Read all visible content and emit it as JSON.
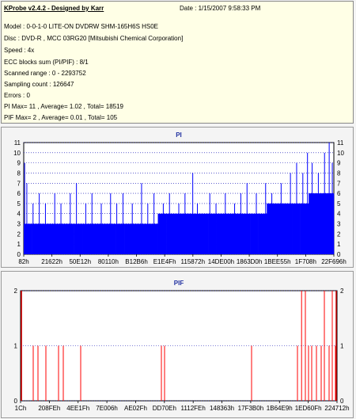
{
  "info": {
    "title": "KProbe v2.4.2 - Designed by Karr",
    "date": "Date : 1/15/2007 9:58:33 PM",
    "lines": [
      "Model : 0-0-1-0 LITE-ON DVDRW SHM-165H6S HS0E",
      "Disc : DVD-R , MCC 03RG20   [Mitsubishi Chemical Corporation]",
      "Speed : 4x",
      "ECC blocks sum (PI/PIF) : 8/1",
      "Scanned range : 0 - 2293752",
      "Sampling count : 126647",
      "Errors : 0",
      "PI Max= 11 , Average= 1.02 , Total= 18519",
      "PIF Max= 2 , Average= 0.01 , Total= 105"
    ]
  },
  "colors": {
    "pi": "#0000ff",
    "pif": "#ff0000",
    "grid": "#0000b0",
    "axis_red": "#cc0000"
  },
  "chart_data": [
    {
      "type": "bar",
      "title": "PI",
      "ylim": [
        0,
        11
      ],
      "yticks": [
        0,
        1,
        2,
        3,
        4,
        5,
        6,
        7,
        8,
        9,
        10,
        11
      ],
      "xtick_labels": [
        "82h",
        "21622h",
        "50E12h",
        "80110h",
        "B12B6h",
        "E1E4Fh",
        "115872h",
        "14DE00h",
        "1863D0h",
        "1BEE55h",
        "1F708h",
        "22F696h"
      ],
      "baseline": [
        3,
        3,
        3,
        3,
        3,
        3,
        3,
        3,
        3,
        3,
        3,
        3,
        3,
        3,
        3,
        3,
        4,
        4,
        4,
        4,
        4,
        4,
        4,
        4,
        4,
        4,
        4,
        4,
        4,
        5,
        5,
        5,
        5,
        5,
        6,
        6,
        6
      ],
      "spikes": [
        {
          "p": 0.003,
          "v": 9
        },
        {
          "p": 0.01,
          "v": 7
        },
        {
          "p": 0.03,
          "v": 5
        },
        {
          "p": 0.05,
          "v": 6
        },
        {
          "p": 0.07,
          "v": 5
        },
        {
          "p": 0.1,
          "v": 6
        },
        {
          "p": 0.12,
          "v": 5
        },
        {
          "p": 0.15,
          "v": 6
        },
        {
          "p": 0.17,
          "v": 7
        },
        {
          "p": 0.2,
          "v": 5
        },
        {
          "p": 0.22,
          "v": 6
        },
        {
          "p": 0.25,
          "v": 5
        },
        {
          "p": 0.28,
          "v": 6
        },
        {
          "p": 0.3,
          "v": 5
        },
        {
          "p": 0.32,
          "v": 6
        },
        {
          "p": 0.35,
          "v": 5
        },
        {
          "p": 0.38,
          "v": 7
        },
        {
          "p": 0.4,
          "v": 5
        },
        {
          "p": 0.42,
          "v": 6
        },
        {
          "p": 0.45,
          "v": 5
        },
        {
          "p": 0.47,
          "v": 6
        },
        {
          "p": 0.5,
          "v": 5
        },
        {
          "p": 0.52,
          "v": 6
        },
        {
          "p": 0.545,
          "v": 8
        },
        {
          "p": 0.56,
          "v": 5
        },
        {
          "p": 0.6,
          "v": 6
        },
        {
          "p": 0.62,
          "v": 5
        },
        {
          "p": 0.65,
          "v": 6
        },
        {
          "p": 0.68,
          "v": 5
        },
        {
          "p": 0.7,
          "v": 6
        },
        {
          "p": 0.72,
          "v": 7
        },
        {
          "p": 0.75,
          "v": 6
        },
        {
          "p": 0.78,
          "v": 7
        },
        {
          "p": 0.8,
          "v": 6
        },
        {
          "p": 0.83,
          "v": 7
        },
        {
          "p": 0.86,
          "v": 8
        },
        {
          "p": 0.88,
          "v": 9
        },
        {
          "p": 0.9,
          "v": 8
        },
        {
          "p": 0.915,
          "v": 10
        },
        {
          "p": 0.93,
          "v": 9
        },
        {
          "p": 0.95,
          "v": 8
        },
        {
          "p": 0.97,
          "v": 10
        },
        {
          "p": 0.985,
          "v": 11
        },
        {
          "p": 0.995,
          "v": 9
        }
      ]
    },
    {
      "type": "bar",
      "title": "PIF",
      "ylim": [
        0,
        2
      ],
      "yticks": [
        0,
        1,
        2
      ],
      "xtick_labels": [
        "1Ch",
        "208FEh",
        "4EE1Fh",
        "7E006h",
        "AE02Fh",
        "DD70Eh",
        "1112FEh",
        "148363h",
        "17F3B0h",
        "1B64E9h",
        "1ED60Fh",
        "224712h"
      ],
      "spikes": [
        {
          "p": 0.003,
          "v": 2
        },
        {
          "p": 0.04,
          "v": 1
        },
        {
          "p": 0.055,
          "v": 1
        },
        {
          "p": 0.08,
          "v": 1
        },
        {
          "p": 0.12,
          "v": 1
        },
        {
          "p": 0.135,
          "v": 1
        },
        {
          "p": 0.19,
          "v": 1
        },
        {
          "p": 0.445,
          "v": 1
        },
        {
          "p": 0.455,
          "v": 1
        },
        {
          "p": 0.73,
          "v": 1
        },
        {
          "p": 0.875,
          "v": 1
        },
        {
          "p": 0.888,
          "v": 2
        },
        {
          "p": 0.9,
          "v": 2
        },
        {
          "p": 0.91,
          "v": 1
        },
        {
          "p": 0.92,
          "v": 1
        },
        {
          "p": 0.935,
          "v": 1
        },
        {
          "p": 0.95,
          "v": 1
        },
        {
          "p": 0.96,
          "v": 2
        },
        {
          "p": 0.975,
          "v": 1
        },
        {
          "p": 0.985,
          "v": 2
        },
        {
          "p": 0.995,
          "v": 1
        }
      ]
    }
  ]
}
